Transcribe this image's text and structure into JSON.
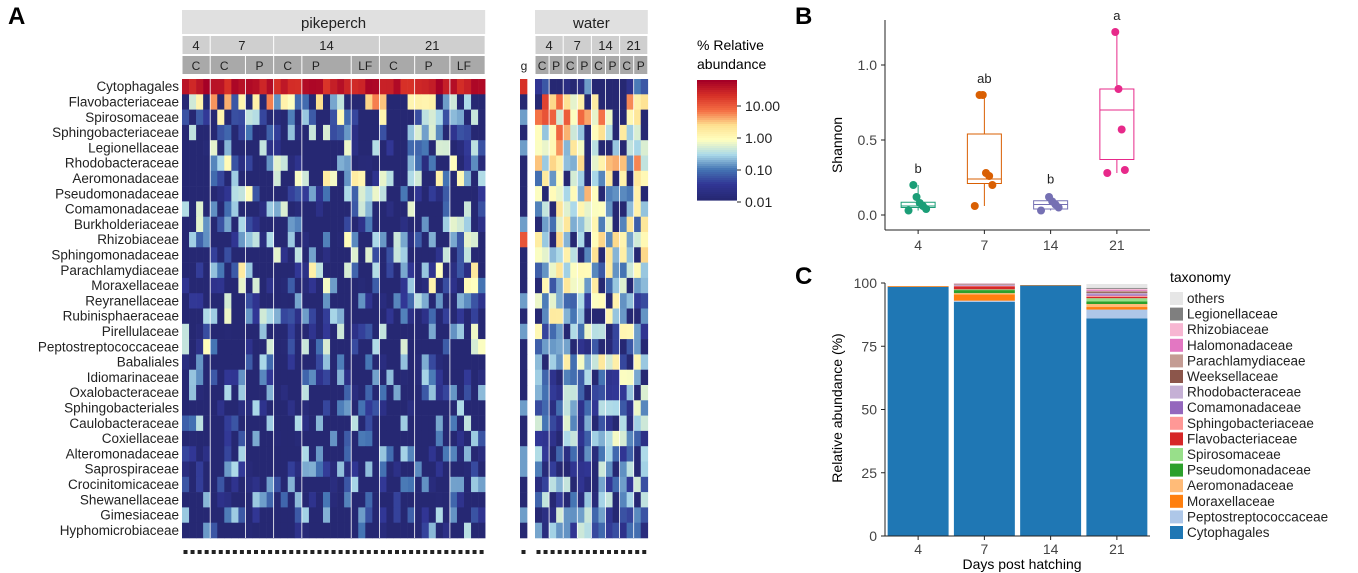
{
  "panel_letters": [
    "A",
    "B",
    "C"
  ],
  "chart_data": [
    {
      "type": "heatmap",
      "panel": "A",
      "groups": [
        {
          "name": "pikeperch",
          "timepoints": [
            {
              "label": "4",
              "subgroups": [
                {
                  "label": "C",
                  "n_samples": 4
                }
              ]
            },
            {
              "label": "7",
              "subgroups": [
                {
                  "label": "C",
                  "n_samples": 5
                },
                {
                  "label": "P",
                  "n_samples": 4
                }
              ]
            },
            {
              "label": "14",
              "subgroups": [
                {
                  "label": "C",
                  "n_samples": 4
                },
                {
                  "label": "P",
                  "n_samples": 7
                },
                {
                  "label": "LF",
                  "n_samples": 4
                }
              ]
            },
            {
              "label": "21",
              "subgroups": [
                {
                  "label": "C",
                  "n_samples": 5
                },
                {
                  "label": "P",
                  "n_samples": 5
                },
                {
                  "label": "LF",
                  "n_samples": 5
                }
              ]
            }
          ]
        },
        {
          "name": "g",
          "timepoints": [
            {
              "label": "",
              "subgroups": [
                {
                  "label": "g",
                  "n_samples": 1
                }
              ]
            }
          ]
        },
        {
          "name": "water",
          "timepoints": [
            {
              "label": "4",
              "subgroups": [
                {
                  "label": "C",
                  "n_samples": 2
                },
                {
                  "label": "P",
                  "n_samples": 2
                }
              ]
            },
            {
              "label": "7",
              "subgroups": [
                {
                  "label": "C",
                  "n_samples": 2
                },
                {
                  "label": "P",
                  "n_samples": 2
                }
              ]
            },
            {
              "label": "14",
              "subgroups": [
                {
                  "label": "C",
                  "n_samples": 2
                },
                {
                  "label": "P",
                  "n_samples": 2
                }
              ]
            },
            {
              "label": "21",
              "subgroups": [
                {
                  "label": "C",
                  "n_samples": 2
                },
                {
                  "label": "P",
                  "n_samples": 2
                }
              ]
            }
          ]
        }
      ],
      "rows": [
        "Cytophagales",
        "Flavobacteriaceae",
        "Spirosomaceae",
        "Sphingobacteriaceae",
        "Legionellaceae",
        "Rhodobacteraceae",
        "Aeromonadaceae",
        "Pseudomonadaceae",
        "Comamonadaceae",
        "Burkholderiaceae",
        "Rhizobiaceae",
        "Sphingomonadaceae",
        "Parachlamydiaceae",
        "Moraxellaceae",
        "Reyranellaceae",
        "Rubinisphaeraceae",
        "Pirellulaceae",
        "Peptostreptococcaceae",
        "Babaliales",
        "Idiomarinaceae",
        "Oxalobacteraceae",
        "Sphingobacteriales",
        "Caulobacteraceae",
        "Coxiellaceae",
        "Alteromonadaceae",
        "Saprospiraceae",
        "Crocinitomicaceae",
        "Shewanellaceae",
        "Gimesiaceae",
        "Hyphomicrobiaceae"
      ],
      "row_mean_log10_pikeperch": [
        1.7,
        -0.5,
        -1.2,
        -1.6,
        -1.4,
        -1.2,
        -1.1,
        -1.3,
        -1.4,
        -1.5,
        -1.2,
        -1.5,
        -1.0,
        -1.2,
        -1.6,
        -1.5,
        -1.5,
        -1.3,
        -1.8,
        -1.9,
        -1.8,
        -1.9,
        -1.8,
        -1.9,
        -1.9,
        -1.8,
        -1.9,
        -1.9,
        -1.9,
        -1.8
      ],
      "row_mean_log10_water": [
        -1.6,
        0.5,
        0.4,
        0.2,
        0.0,
        0.0,
        -0.4,
        -0.1,
        -0.3,
        -0.4,
        -0.2,
        -0.3,
        -0.4,
        -0.5,
        -0.6,
        -0.5,
        -0.7,
        -1.6,
        -0.5,
        -0.9,
        -0.8,
        -0.9,
        -1.0,
        -0.9,
        -1.1,
        -1.1,
        -1.1,
        -1.2,
        -1.1,
        -1.1
      ],
      "colorbar": {
        "title_line1": "% Relative",
        "title_line2": "abundance",
        "ticks": [
          "10.00",
          "1.00",
          "0.10",
          "0.01"
        ],
        "scale": "log10"
      }
    },
    {
      "type": "box",
      "panel": "B",
      "ylabel": "Shannon",
      "xlabel": "",
      "ylim": [
        -0.1,
        1.3
      ],
      "yticks": [
        "0.0",
        "0.5",
        "1.0"
      ],
      "categories": [
        "4",
        "7",
        "14",
        "21"
      ],
      "colors": [
        "#1b9e77",
        "#d95f02",
        "#7570b3",
        "#e7298a"
      ],
      "letters": [
        "b",
        "ab",
        "b",
        "a"
      ],
      "boxes": [
        {
          "q1": 0.05,
          "median": 0.06,
          "q3": 0.085,
          "lo": 0.03,
          "hi": 0.2
        },
        {
          "q1": 0.21,
          "median": 0.24,
          "q3": 0.54,
          "lo": 0.06,
          "hi": 0.8
        },
        {
          "q1": 0.04,
          "median": 0.07,
          "q3": 0.095,
          "lo": 0.03,
          "hi": 0.13
        },
        {
          "q1": 0.37,
          "median": 0.7,
          "q3": 0.84,
          "lo": 0.28,
          "hi": 1.22
        }
      ],
      "points": [
        [
          0.03,
          0.04,
          0.06,
          0.08,
          0.12,
          0.2
        ],
        [
          0.06,
          0.2,
          0.26,
          0.28,
          0.8,
          0.8
        ],
        [
          0.03,
          0.05,
          0.07,
          0.09,
          0.12
        ],
        [
          0.28,
          0.3,
          0.57,
          0.84,
          1.22
        ]
      ]
    },
    {
      "type": "stacked-bar",
      "panel": "C",
      "ylabel": "Relative abundance (%)",
      "xlabel": "Days post hatching",
      "ylim": [
        0,
        100
      ],
      "yticks": [
        "0",
        "25",
        "50",
        "75",
        "100"
      ],
      "categories": [
        "4",
        "7",
        "14",
        "21"
      ],
      "legend_title": "taxonomy",
      "legend": [
        "others",
        "Legionellaceae",
        "Rhizobiaceae",
        "Halomonadaceae",
        "Parachlamydiaceae",
        "Weeksellaceae",
        "Rhodobacteraceae",
        "Comamonadaceae",
        "Sphingobacteriaceae",
        "Flavobacteriaceae",
        "Spirosomaceae",
        "Pseudomonadaceae",
        "Aeromonadaceae",
        "Moraxellaceae",
        "Peptostreptococcaceae",
        "Cytophagales"
      ],
      "colors": {
        "others": "#e6e6e6",
        "Legionellaceae": "#7f7f7f",
        "Rhizobiaceae": "#f7b6d2",
        "Halomonadaceae": "#e377c2",
        "Parachlamydiaceae": "#c49c94",
        "Weeksellaceae": "#8c564b",
        "Rhodobacteraceae": "#c5b0d5",
        "Comamonadaceae": "#9467bd",
        "Sphingobacteriaceae": "#ff9896",
        "Flavobacteriaceae": "#d62728",
        "Spirosomaceae": "#98df8a",
        "Pseudomonadaceae": "#2ca02c",
        "Aeromonadaceae": "#ffbb78",
        "Moraxellaceae": "#ff7f0e",
        "Peptostreptococcaceae": "#aec7e8",
        "Cytophagales": "#1f77b4"
      },
      "series": [
        {
          "name": "Cytophagales",
          "values": [
            98.5,
            92.5,
            99.0,
            86.0
          ]
        },
        {
          "name": "Peptostreptococcaceae",
          "values": [
            0.0,
            0.5,
            0.0,
            3.5
          ]
        },
        {
          "name": "Moraxellaceae",
          "values": [
            0.3,
            2.5,
            0.2,
            1.0
          ]
        },
        {
          "name": "Aeromonadaceae",
          "values": [
            0.0,
            0.5,
            0.0,
            1.2
          ]
        },
        {
          "name": "Pseudomonadaceae",
          "values": [
            0.0,
            1.2,
            0.0,
            1.0
          ]
        },
        {
          "name": "Spirosomaceae",
          "values": [
            0.0,
            0.3,
            0.0,
            1.3
          ]
        },
        {
          "name": "Flavobacteriaceae",
          "values": [
            0.0,
            1.2,
            0.0,
            0.5
          ]
        },
        {
          "name": "Sphingobacteriaceae",
          "values": [
            0.0,
            0.2,
            0.0,
            0.5
          ]
        },
        {
          "name": "Comamonadaceae",
          "values": [
            0.0,
            0.2,
            0.0,
            0.5
          ]
        },
        {
          "name": "Rhodobacteraceae",
          "values": [
            0.0,
            0.2,
            0.0,
            0.5
          ]
        },
        {
          "name": "Weeksellaceae",
          "values": [
            0.0,
            0.2,
            0.0,
            0.4
          ]
        },
        {
          "name": "Parachlamydiaceae",
          "values": [
            0.0,
            0.1,
            0.0,
            0.5
          ]
        },
        {
          "name": "Halomonadaceae",
          "values": [
            0.0,
            0.1,
            0.0,
            0.4
          ]
        },
        {
          "name": "Rhizobiaceae",
          "values": [
            0.0,
            0.1,
            0.0,
            0.4
          ]
        },
        {
          "name": "Legionellaceae",
          "values": [
            0.0,
            0.1,
            0.0,
            0.4
          ]
        },
        {
          "name": "others",
          "values": [
            0.0,
            0.1,
            0.0,
            1.5
          ]
        }
      ]
    }
  ]
}
